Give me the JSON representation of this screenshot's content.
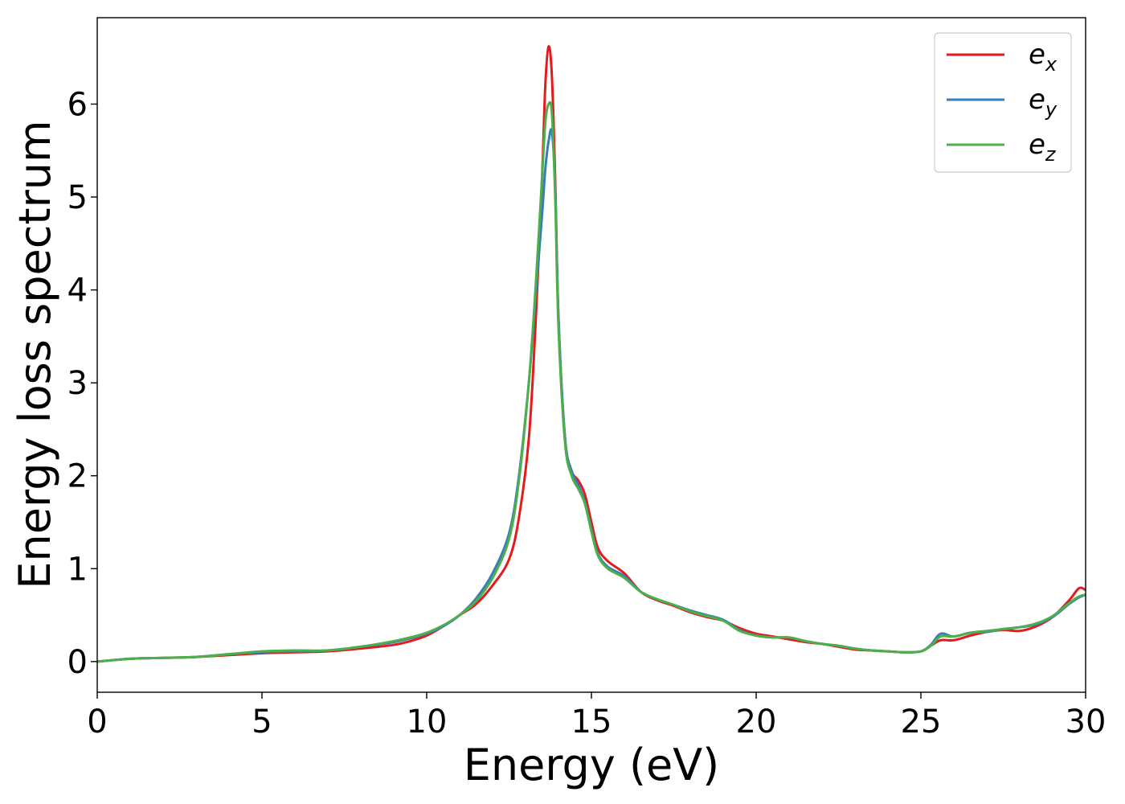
{
  "chart_data": {
    "type": "line",
    "title": "",
    "xlabel": "Energy (eV)",
    "ylabel": "Energy loss spectrum",
    "xlim": [
      0,
      30
    ],
    "ylim": [
      -0.33,
      6.93
    ],
    "xticks": [
      0,
      5,
      10,
      15,
      20,
      25,
      30
    ],
    "yticks": [
      0,
      1,
      2,
      3,
      4,
      5,
      6
    ],
    "grid": false,
    "legend_position": "top-right",
    "series": [
      {
        "name": "e_x",
        "label_base": "e",
        "label_sub": "x",
        "color": "#e41a1c",
        "x": [
          0,
          1,
          2,
          3,
          4,
          5,
          6,
          7,
          8,
          9,
          9.5,
          10,
          10.5,
          11,
          11.5,
          12,
          12.5,
          12.8,
          13.1,
          13.3,
          13.5,
          13.6,
          13.7,
          13.8,
          13.9,
          14.0,
          14.2,
          14.4,
          14.6,
          14.8,
          15.0,
          15.2,
          15.5,
          16.0,
          16.5,
          17,
          17.5,
          18,
          18.5,
          19,
          19.5,
          20,
          20.5,
          21,
          21.5,
          22,
          22.5,
          23,
          23.5,
          24,
          24.5,
          25,
          25.3,
          25.6,
          26,
          26.5,
          27,
          27.5,
          28,
          28.5,
          29,
          29.5,
          29.8,
          30
        ],
        "y": [
          0.0,
          0.03,
          0.04,
          0.05,
          0.07,
          0.09,
          0.1,
          0.11,
          0.14,
          0.18,
          0.22,
          0.28,
          0.38,
          0.5,
          0.62,
          0.82,
          1.1,
          1.55,
          2.4,
          3.6,
          5.2,
          6.2,
          6.62,
          6.3,
          5.2,
          3.7,
          2.4,
          2.05,
          1.95,
          1.8,
          1.5,
          1.22,
          1.08,
          0.95,
          0.75,
          0.66,
          0.6,
          0.53,
          0.48,
          0.44,
          0.36,
          0.3,
          0.27,
          0.24,
          0.21,
          0.19,
          0.16,
          0.13,
          0.12,
          0.11,
          0.1,
          0.11,
          0.17,
          0.23,
          0.23,
          0.28,
          0.32,
          0.34,
          0.33,
          0.38,
          0.48,
          0.66,
          0.79,
          0.77
        ]
      },
      {
        "name": "e_y",
        "label_base": "e",
        "label_sub": "y",
        "color": "#377eb8",
        "x": [
          0,
          1,
          2,
          3,
          4,
          5,
          6,
          7,
          8,
          9,
          9.5,
          10,
          10.5,
          11,
          11.5,
          12,
          12.5,
          12.8,
          13.1,
          13.3,
          13.5,
          13.6,
          13.7,
          13.8,
          13.9,
          14.0,
          14.2,
          14.4,
          14.6,
          14.8,
          15.0,
          15.2,
          15.5,
          16.0,
          16.5,
          17,
          17.5,
          18,
          18.5,
          19,
          19.5,
          20,
          20.5,
          21,
          21.5,
          22,
          22.5,
          23,
          23.5,
          24,
          24.5,
          25,
          25.3,
          25.6,
          26,
          26.5,
          27,
          27.5,
          28,
          28.5,
          29,
          29.5,
          29.8,
          30
        ],
        "y": [
          0.0,
          0.03,
          0.04,
          0.05,
          0.08,
          0.1,
          0.11,
          0.12,
          0.16,
          0.21,
          0.25,
          0.3,
          0.38,
          0.5,
          0.68,
          0.95,
          1.38,
          2.0,
          3.0,
          3.9,
          4.8,
          5.3,
          5.6,
          5.7,
          5.1,
          3.7,
          2.4,
          2.05,
          1.9,
          1.72,
          1.42,
          1.16,
          1.02,
          0.92,
          0.75,
          0.67,
          0.61,
          0.55,
          0.5,
          0.45,
          0.34,
          0.28,
          0.26,
          0.26,
          0.22,
          0.19,
          0.17,
          0.14,
          0.12,
          0.11,
          0.1,
          0.11,
          0.18,
          0.3,
          0.27,
          0.31,
          0.32,
          0.35,
          0.37,
          0.4,
          0.48,
          0.62,
          0.69,
          0.72
        ]
      },
      {
        "name": "e_z",
        "label_base": "e",
        "label_sub": "z",
        "color": "#4daf4a",
        "x": [
          0,
          1,
          2,
          3,
          4,
          5,
          6,
          7,
          8,
          9,
          9.5,
          10,
          10.5,
          11,
          11.5,
          12,
          12.5,
          12.8,
          13.1,
          13.3,
          13.5,
          13.6,
          13.7,
          13.8,
          13.9,
          14.0,
          14.2,
          14.4,
          14.6,
          14.8,
          15.0,
          15.2,
          15.5,
          16.0,
          16.5,
          17,
          17.5,
          18,
          18.5,
          19,
          19.5,
          20,
          20.5,
          21,
          21.5,
          22,
          22.5,
          23,
          23.5,
          24,
          24.5,
          25,
          25.3,
          25.6,
          26,
          26.5,
          27,
          27.5,
          28,
          28.5,
          29,
          29.5,
          29.8,
          30
        ],
        "y": [
          0.0,
          0.03,
          0.04,
          0.05,
          0.08,
          0.11,
          0.12,
          0.12,
          0.16,
          0.22,
          0.26,
          0.31,
          0.39,
          0.5,
          0.65,
          0.9,
          1.32,
          1.95,
          3.0,
          4.0,
          5.2,
          5.8,
          6.0,
          5.9,
          5.0,
          3.6,
          2.35,
          2.0,
          1.86,
          1.7,
          1.4,
          1.14,
          1.0,
          0.9,
          0.75,
          0.67,
          0.61,
          0.54,
          0.49,
          0.44,
          0.33,
          0.28,
          0.26,
          0.26,
          0.22,
          0.19,
          0.17,
          0.14,
          0.12,
          0.11,
          0.1,
          0.11,
          0.17,
          0.27,
          0.27,
          0.31,
          0.33,
          0.35,
          0.37,
          0.41,
          0.49,
          0.63,
          0.7,
          0.72
        ]
      }
    ]
  }
}
